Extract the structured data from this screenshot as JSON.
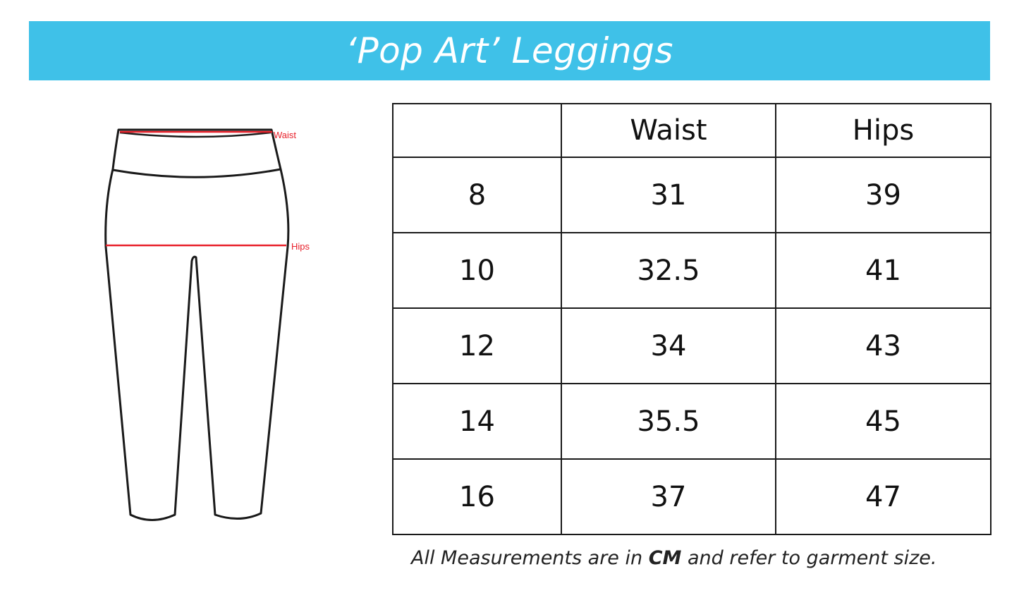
{
  "title": "‘Pop Art’ Leggings",
  "banner_color": "#3fc1e8",
  "diagram": {
    "labels": {
      "waist": "Waist",
      "hips": "Hips"
    },
    "measure_line_color": "#e8202a"
  },
  "table": {
    "headers": [
      "",
      "Waist",
      "Hips"
    ],
    "rows": [
      [
        "8",
        "31",
        "39"
      ],
      [
        "10",
        "32.5",
        "41"
      ],
      [
        "12",
        "34",
        "43"
      ],
      [
        "14",
        "35.5",
        "45"
      ],
      [
        "16",
        "37",
        "47"
      ]
    ]
  },
  "note": {
    "before": "All Measurements are in ",
    "unit": "CM",
    "after": " and refer to garment size."
  }
}
